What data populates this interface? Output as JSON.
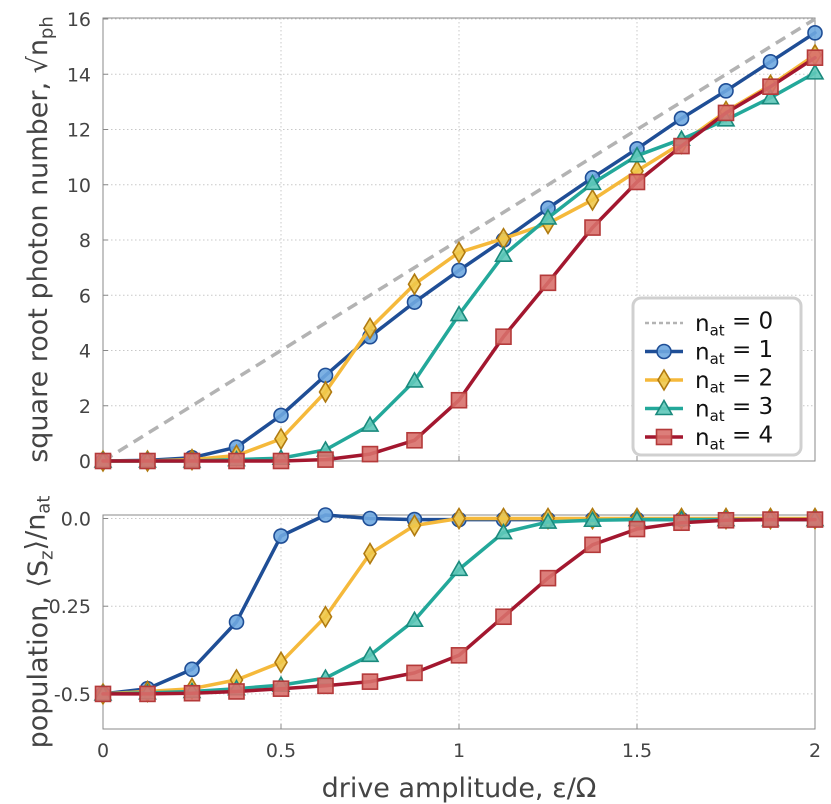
{
  "chart_data": [
    {
      "type": "line",
      "ylabel": "square root photon number, √n_ph",
      "xlim": [
        0,
        2
      ],
      "ylim": [
        0,
        16
      ],
      "xticks": [
        0,
        0.5,
        1,
        1.5,
        2
      ],
      "yticks": [
        0,
        2,
        4,
        6,
        8,
        10,
        12,
        14,
        16
      ],
      "ytick_labels": [
        "0",
        "2",
        "4",
        "6",
        "8",
        "10",
        "12",
        "14",
        "16"
      ],
      "grid": true,
      "legend_placement": "lower-right",
      "legend": [
        "n_at = 0",
        "n_at = 1",
        "n_at = 2",
        "n_at = 3",
        "n_at = 4"
      ],
      "x": [
        0,
        0.125,
        0.25,
        0.375,
        0.5,
        0.625,
        0.75,
        0.875,
        1.0,
        1.125,
        1.25,
        1.375,
        1.5,
        1.625,
        1.75,
        1.875,
        2.0
      ],
      "series": [
        {
          "name": "n_at = 0",
          "color": "#b3b3b3",
          "marker": "none",
          "style": "dashed",
          "values": [
            0,
            1,
            2,
            3,
            4,
            5,
            6,
            7,
            8,
            9,
            10,
            11,
            12,
            13,
            14,
            15,
            16
          ]
        },
        {
          "name": "n_at = 1",
          "color": "#1f4e96",
          "marker": "circle",
          "fill": "#6fa8e0",
          "values": [
            0,
            0.02,
            0.12,
            0.5,
            1.65,
            3.1,
            4.5,
            5.75,
            6.9,
            8.0,
            9.15,
            10.25,
            11.3,
            12.4,
            13.4,
            14.45,
            15.5
          ]
        },
        {
          "name": "n_at = 2",
          "color": "#f5b93b",
          "marker": "diamond",
          "fill": "#f0c84a",
          "values": [
            0,
            0.0,
            0.05,
            0.2,
            0.8,
            2.5,
            4.8,
            6.4,
            7.55,
            8.05,
            8.6,
            9.45,
            10.5,
            11.5,
            12.65,
            13.6,
            14.7
          ]
        },
        {
          "name": "n_at = 3",
          "color": "#23a89a",
          "marker": "triangle",
          "fill": "#5fc8b9",
          "values": [
            0,
            0.0,
            0.0,
            0.05,
            0.1,
            0.4,
            1.3,
            2.9,
            5.3,
            7.45,
            8.8,
            10.05,
            11.05,
            11.65,
            12.35,
            13.15,
            14.05
          ]
        },
        {
          "name": "n_at = 4",
          "color": "#a3172f",
          "marker": "square",
          "fill": "#d8706c",
          "values": [
            0,
            0.0,
            0.0,
            0.0,
            0.0,
            0.05,
            0.25,
            0.75,
            2.2,
            4.5,
            6.45,
            8.45,
            10.1,
            11.4,
            12.6,
            13.55,
            14.6
          ]
        }
      ]
    },
    {
      "type": "line",
      "xlabel": "drive amplitude, ε/Ω",
      "ylabel": "population, ⟨S_z⟩/n_at",
      "xlim": [
        0,
        2
      ],
      "ylim": [
        -0.6,
        0.01
      ],
      "xticks": [
        0,
        0.5,
        1,
        1.5,
        2
      ],
      "xtick_labels": [
        "0",
        "0.5",
        "1",
        "1.5",
        "2"
      ],
      "yticks": [
        0,
        -0.25,
        -0.5
      ],
      "ytick_labels": [
        "0.0",
        "-0.25",
        "-0.5"
      ],
      "grid": true,
      "x": [
        0,
        0.125,
        0.25,
        0.375,
        0.5,
        0.625,
        0.75,
        0.875,
        1.0,
        1.125,
        1.25,
        1.375,
        1.5,
        1.625,
        1.75,
        1.875,
        2.0
      ],
      "series": [
        {
          "name": "n_at = 1",
          "color": "#1f4e96",
          "marker": "circle",
          "fill": "#6fa8e0",
          "values": [
            -0.5,
            -0.485,
            -0.43,
            -0.295,
            -0.05,
            0.01,
            0.0,
            -0.003,
            -0.003,
            -0.003,
            -0.003,
            -0.003,
            -0.003,
            -0.003,
            -0.003,
            -0.003,
            -0.003
          ]
        },
        {
          "name": "n_at = 2",
          "color": "#f5b93b",
          "marker": "diamond",
          "fill": "#f0c84a",
          "values": [
            -0.5,
            -0.493,
            -0.485,
            -0.46,
            -0.41,
            -0.28,
            -0.1,
            -0.02,
            0.0,
            0.0,
            0.0,
            0.0,
            0.0,
            0.0,
            0.0,
            0.0,
            0.0
          ]
        },
        {
          "name": "n_at = 3",
          "color": "#23a89a",
          "marker": "triangle",
          "fill": "#5fc8b9",
          "values": [
            -0.5,
            -0.497,
            -0.493,
            -0.485,
            -0.475,
            -0.455,
            -0.39,
            -0.29,
            -0.145,
            -0.04,
            -0.01,
            -0.005,
            -0.003,
            -0.003,
            -0.003,
            -0.003,
            -0.003
          ]
        },
        {
          "name": "n_at = 4",
          "color": "#a3172f",
          "marker": "square",
          "fill": "#d8706c",
          "values": [
            -0.5,
            -0.5,
            -0.498,
            -0.493,
            -0.485,
            -0.477,
            -0.465,
            -0.44,
            -0.39,
            -0.28,
            -0.17,
            -0.075,
            -0.03,
            -0.012,
            -0.005,
            -0.003,
            -0.003
          ]
        }
      ]
    }
  ]
}
